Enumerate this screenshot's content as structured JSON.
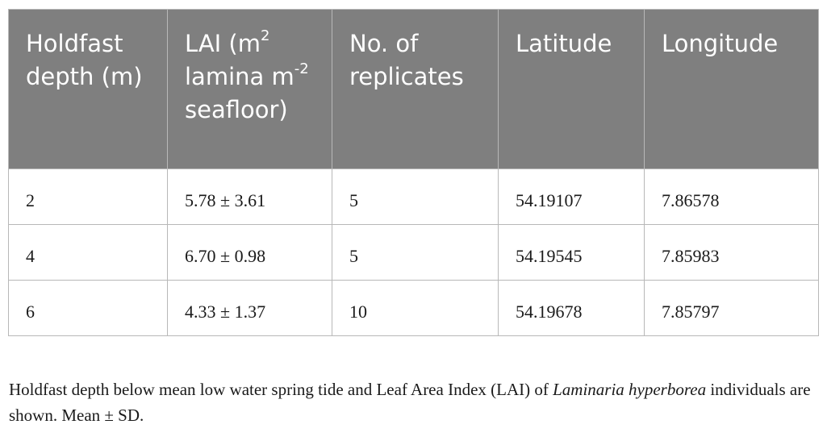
{
  "table": {
    "headers": {
      "depth": "Holdfast depth (m)",
      "lai_prefix": "LAI (m",
      "lai_sup1": "2",
      "lai_mid": " lamina m",
      "lai_sup2": "-2",
      "lai_suffix": " seafloor)",
      "replicates": "No. of replicates",
      "latitude": "Latitude",
      "longitude": "Longitude"
    },
    "rows": [
      {
        "depth": "2",
        "lai": "5.78 ± 3.61",
        "replicates": "5",
        "latitude": "54.19107",
        "longitude": "7.86578"
      },
      {
        "depth": "4",
        "lai": "6.70 ± 0.98",
        "replicates": "5",
        "latitude": "54.19545",
        "longitude": "7.85983"
      },
      {
        "depth": "6",
        "lai": "4.33 ± 1.37",
        "replicates": "10",
        "latitude": "54.19678",
        "longitude": "7.85797"
      }
    ]
  },
  "caption": {
    "part1": "Holdfast depth below mean low water spring tide and Leaf Area Index (LAI) of ",
    "species": "Laminaria hyperborea",
    "part2": " individuals are shown. Mean ± SD."
  },
  "colors": {
    "header_bg": "#7f7f7f",
    "header_text": "#ffffff",
    "border": "#b8b8b8"
  }
}
